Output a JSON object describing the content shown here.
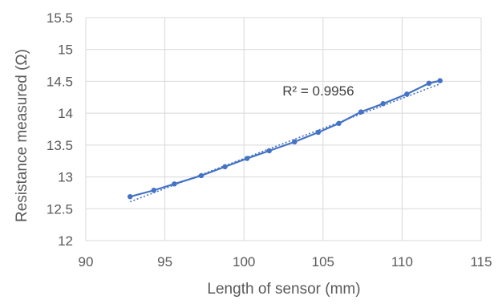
{
  "chart_data": {
    "type": "scatter",
    "xlabel": "Length of sensor (mm)",
    "ylabel": "Resistance measured (Ω)",
    "xlim": [
      90,
      115
    ],
    "ylim": [
      12,
      15.5
    ],
    "xticks": [
      90,
      95,
      100,
      105,
      110,
      115
    ],
    "yticks": [
      12,
      12.5,
      13,
      13.5,
      14,
      14.5,
      15,
      15.5
    ],
    "xtick_labels": [
      "90",
      "95",
      "100",
      "105",
      "110",
      "115"
    ],
    "ytick_labels": [
      "12",
      "12.5",
      "13",
      "13.5",
      "14",
      "14.5",
      "15",
      "15.5"
    ],
    "grid": true,
    "series": [
      {
        "points": [
          [
            92.8,
            12.69
          ],
          [
            94.3,
            12.79
          ],
          [
            95.6,
            12.89
          ],
          [
            97.3,
            13.02
          ],
          [
            98.8,
            13.16
          ],
          [
            100.2,
            13.29
          ],
          [
            101.6,
            13.41
          ],
          [
            103.2,
            13.55
          ],
          [
            104.7,
            13.7
          ],
          [
            106.0,
            13.84
          ],
          [
            107.4,
            14.02
          ],
          [
            108.8,
            14.15
          ],
          [
            110.3,
            14.3
          ],
          [
            111.7,
            14.47
          ],
          [
            112.4,
            14.51
          ]
        ],
        "color": "#4472c4",
        "line": true,
        "markers": true
      }
    ],
    "trendline": {
      "type": "linear",
      "from": [
        92.8,
        12.61
      ],
      "to": [
        112.4,
        14.46
      ],
      "color": "#4472c4",
      "style": "dotted"
    },
    "annotations": [
      {
        "text": "R² = 0.9956",
        "x": 104.7,
        "y": 14.28
      }
    ]
  }
}
